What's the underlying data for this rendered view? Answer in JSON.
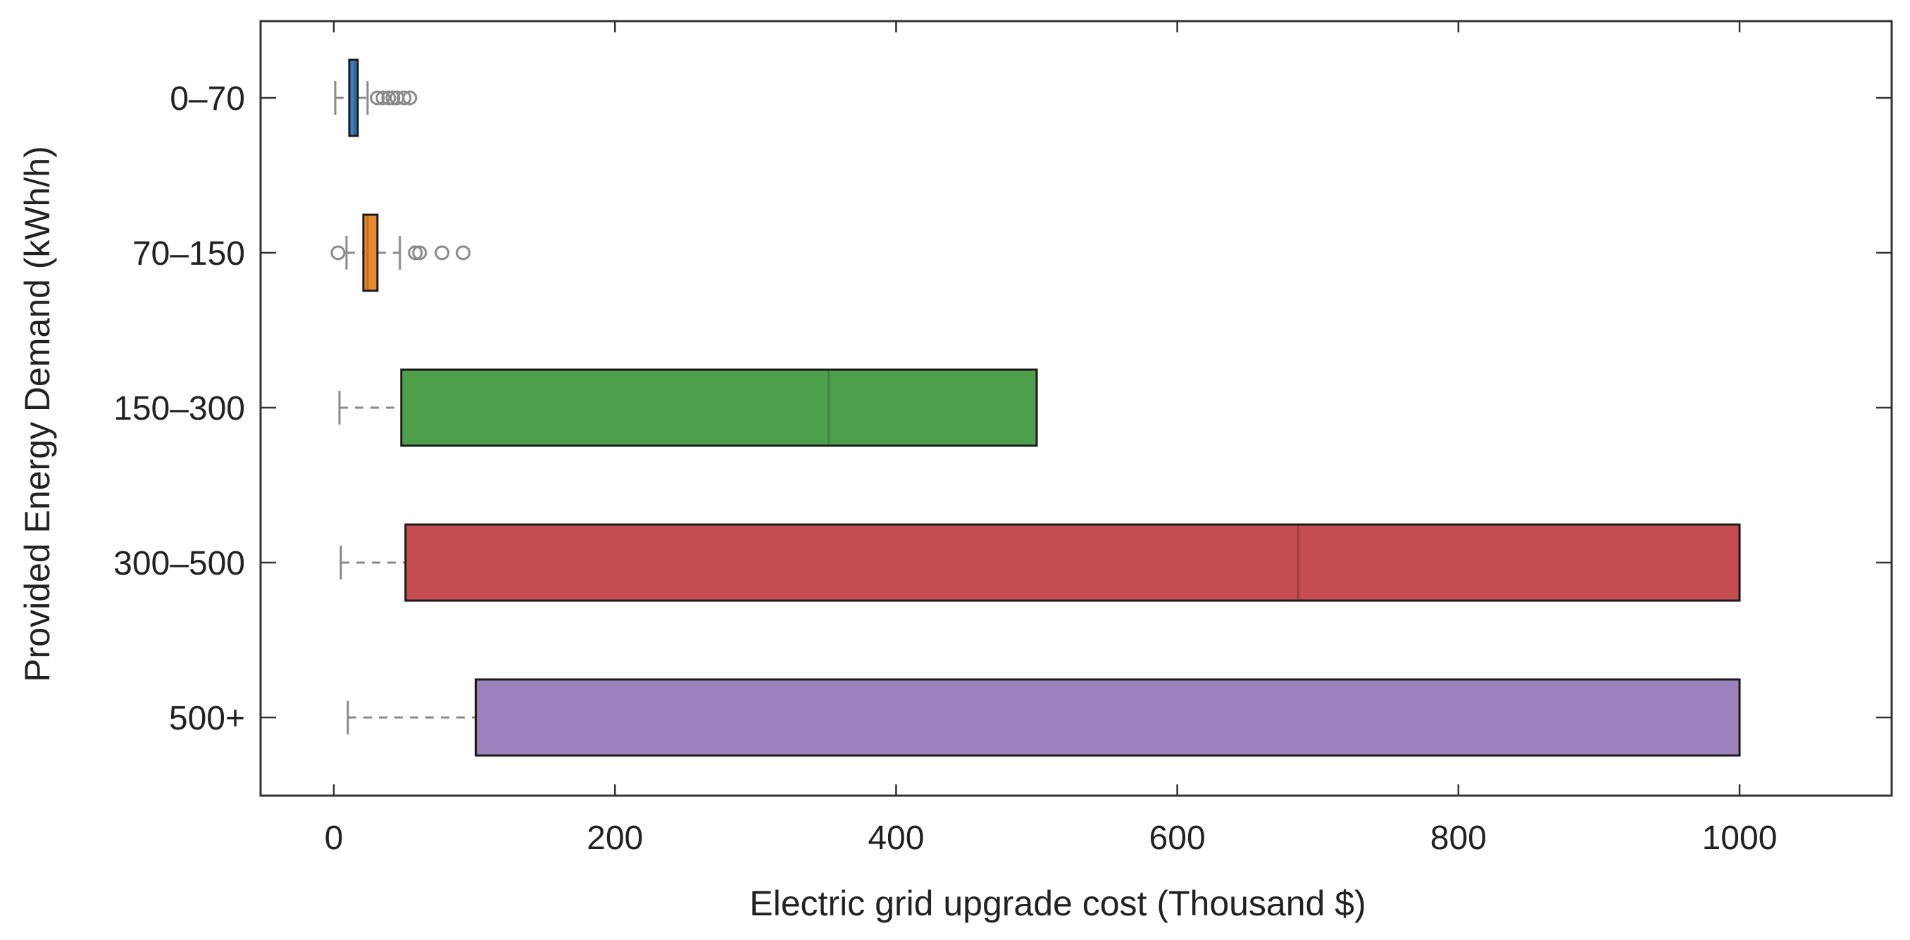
{
  "chart_data": {
    "type": "boxplot",
    "orientation": "horizontal",
    "title": "",
    "xlabel": "Electric grid upgrade cost (Thousand $)",
    "ylabel": "Provided Energy Demand (kWh/h)",
    "xlim": [
      -52,
      1112
    ],
    "xticks": [
      0,
      200,
      400,
      600,
      800,
      1000
    ],
    "xtick_labels": [
      "0",
      "200",
      "400",
      "600",
      "800",
      "1000"
    ],
    "grid": false,
    "categories": [
      "0–70",
      "70–150",
      "150–300",
      "300–500",
      "500+"
    ],
    "series": [
      {
        "category": "0–70",
        "color": "#3f7fbf",
        "whisker_low": 1,
        "q1": 11,
        "median": 15,
        "q3": 17,
        "whisker_high": 24,
        "outliers": [
          31,
          35,
          39,
          42,
          45,
          50,
          54
        ]
      },
      {
        "category": "70–150",
        "color": "#e98b2c",
        "whisker_low": 9,
        "q1": 21,
        "median": 24,
        "q3": 31,
        "whisker_high": 47,
        "outliers": [
          3,
          58,
          61,
          77,
          92
        ]
      },
      {
        "category": "150–300",
        "color": "#4e9f4c",
        "whisker_low": 4,
        "q1": 48,
        "median": 352,
        "q3": 500,
        "whisker_high": 500,
        "outliers": []
      },
      {
        "category": "300–500",
        "color": "#c44e52",
        "whisker_low": 5,
        "q1": 51,
        "median": 686,
        "q3": 1000,
        "whisker_high": 1000,
        "outliers": []
      },
      {
        "category": "500+",
        "color": "#9d83bd",
        "whisker_low": 10,
        "q1": 101,
        "median": 101,
        "q3": 1000,
        "whisker_high": 1000,
        "outliers": []
      }
    ]
  }
}
